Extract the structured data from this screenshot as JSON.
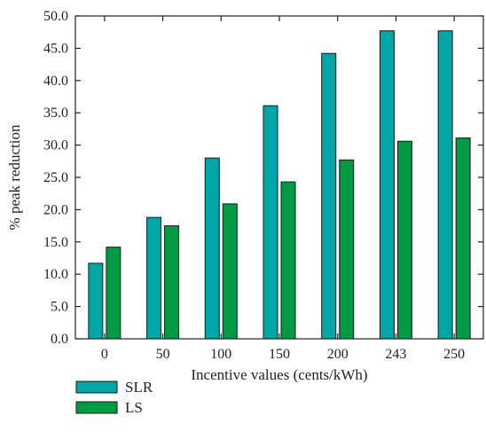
{
  "chart_data": {
    "type": "bar",
    "categories": [
      "0",
      "50",
      "100",
      "150",
      "200",
      "243",
      "250"
    ],
    "series": [
      {
        "name": "SLR",
        "values": [
          11.7,
          18.8,
          28.0,
          36.1,
          44.2,
          47.7,
          47.7
        ],
        "color": "#00A6A6"
      },
      {
        "name": "LS",
        "values": [
          14.2,
          17.5,
          20.9,
          24.3,
          27.7,
          30.6,
          31.1
        ],
        "color": "#009A44"
      }
    ],
    "title": "",
    "xlabel": "Incentive values (cents/kWh)",
    "ylabel": "% peak reduction",
    "ylim": [
      0,
      50
    ],
    "yticks": [
      "0.0",
      "5.0",
      "10.0",
      "15.0",
      "20.0",
      "25.0",
      "30.0",
      "35.0",
      "40.0",
      "45.0",
      "50.0"
    ],
    "grid": false,
    "legend_position": "bottom-left"
  }
}
